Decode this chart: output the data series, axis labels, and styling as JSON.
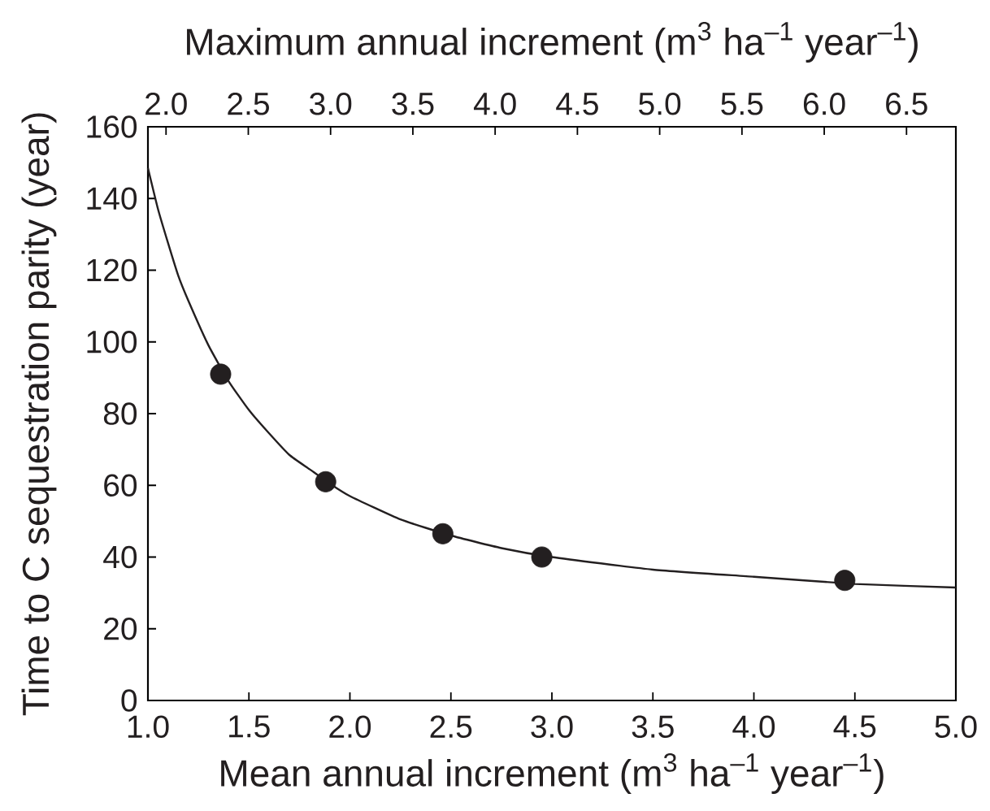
{
  "chart_data": {
    "type": "scatter",
    "xlabel": "Mean annual increment (m$^{3}$ ha$^{–1}$ year$^{–1}$)",
    "x2label": "Maximum annual increment (m$^{3}$ ha$^{–1}$ year$^{–1}$)",
    "ylabel": "Time to C sequestration parity (year)",
    "xlim": [
      1.0,
      5.0
    ],
    "xticks": [
      {
        "value": 1.0,
        "label": "1.0"
      },
      {
        "value": 1.5,
        "label": "1.5"
      },
      {
        "value": 2.0,
        "label": "2.0"
      },
      {
        "value": 2.5,
        "label": "2.5"
      },
      {
        "value": 3.0,
        "label": "3.0"
      },
      {
        "value": 3.5,
        "label": "3.5"
      },
      {
        "value": 4.0,
        "label": "4.0"
      },
      {
        "value": 4.5,
        "label": "4.5"
      },
      {
        "value": 5.0,
        "label": "5.0"
      }
    ],
    "x2lim": [
      1.89,
      6.8
    ],
    "x2ticks": [
      {
        "value": 2.0,
        "label": "2.0"
      },
      {
        "value": 2.5,
        "label": "2.5"
      },
      {
        "value": 3.0,
        "label": "3.0"
      },
      {
        "value": 3.5,
        "label": "3.5"
      },
      {
        "value": 4.0,
        "label": "4.0"
      },
      {
        "value": 4.5,
        "label": "4.5"
      },
      {
        "value": 5.0,
        "label": "5.0"
      },
      {
        "value": 5.5,
        "label": "5.5"
      },
      {
        "value": 6.0,
        "label": "6.0"
      },
      {
        "value": 6.5,
        "label": "6.5"
      }
    ],
    "ylim": [
      0,
      160
    ],
    "yticks": [
      0,
      20,
      40,
      60,
      80,
      100,
      120,
      140,
      160
    ],
    "series": [
      {
        "color": "#231f20",
        "marker": "circle",
        "x": [
          1.36,
          1.88,
          2.46,
          2.95,
          4.45
        ],
        "values": [
          91,
          61,
          46.5,
          40,
          33.5
        ]
      },
      {
        "type": "line",
        "color": "#231f20",
        "x": [
          1.0,
          1.05,
          1.1,
          1.15,
          1.2,
          1.3,
          1.4,
          1.5,
          1.6,
          1.7,
          1.8,
          1.9,
          2.0,
          2.25,
          2.5,
          2.75,
          3.0,
          3.5,
          4.0,
          4.5,
          5.0
        ],
        "values": [
          148.5,
          137,
          127.5,
          118.5,
          111.5,
          99,
          89,
          81,
          74.5,
          68.5,
          64.5,
          60.5,
          57,
          50.5,
          46,
          42.5,
          40,
          36.5,
          34.5,
          32.5,
          31.5
        ]
      }
    ]
  }
}
